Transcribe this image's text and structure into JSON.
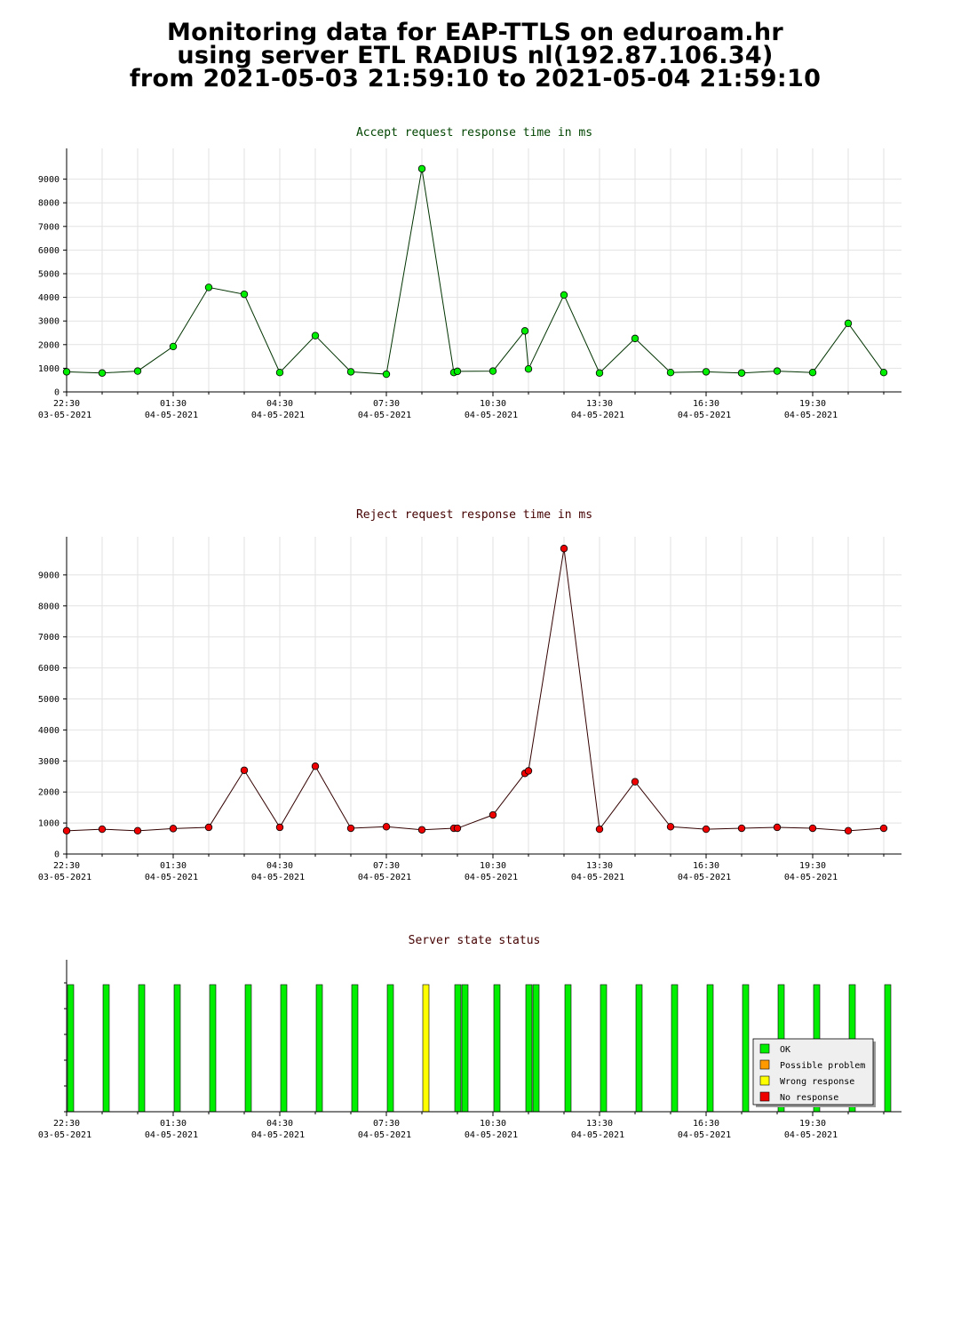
{
  "page": {
    "title_lines": [
      "Monitoring data for EAP-TTLS on eduroam.hr",
      "using server ETL RADIUS nl(192.87.106.34)",
      "from 2021-05-03 21:59:10 to 2021-05-04 21:59:10"
    ]
  },
  "x_axis": {
    "ticks": [
      {
        "hour": 0.5,
        "time": "22:30",
        "date": "03-05-2021"
      },
      {
        "hour": 3.5,
        "time": "01:30",
        "date": "04-05-2021"
      },
      {
        "hour": 6.5,
        "time": "04:30",
        "date": "04-05-2021"
      },
      {
        "hour": 9.5,
        "time": "07:30",
        "date": "04-05-2021"
      },
      {
        "hour": 12.5,
        "time": "10:30",
        "date": "04-05-2021"
      },
      {
        "hour": 15.5,
        "time": "13:30",
        "date": "04-05-2021"
      },
      {
        "hour": 18.5,
        "time": "16:30",
        "date": "04-05-2021"
      },
      {
        "hour": 21.5,
        "time": "19:30",
        "date": "04-05-2021"
      }
    ],
    "range_hours_since_22_00": [
      0.5,
      24
    ]
  },
  "chart_data": [
    {
      "type": "line",
      "title": "Accept request response time in ms",
      "title_color": "#004400",
      "line_color": "#003300",
      "marker_color": "#00ee00",
      "ylim": [
        0,
        10000
      ],
      "yticks": [
        0,
        1000,
        2000,
        3000,
        4000,
        5000,
        6000,
        7000,
        8000,
        9000
      ],
      "grid": true,
      "x_hours": [
        0.5,
        1.5,
        2.5,
        3.5,
        4.5,
        5.5,
        6.5,
        7.5,
        8.5,
        9.5,
        10.5,
        11.4,
        11.5,
        12.5,
        13.4,
        13.5,
        14.5,
        15.5,
        16.5,
        17.5,
        18.5,
        19.5,
        20.5,
        21.5,
        22.5,
        23.5
      ],
      "values": [
        850,
        800,
        880,
        1920,
        4420,
        4130,
        820,
        2380,
        850,
        750,
        9440,
        820,
        870,
        880,
        2580,
        970,
        4100,
        800,
        2260,
        820,
        850,
        800,
        880,
        820,
        2900,
        820
      ]
    },
    {
      "type": "line",
      "title": "Reject request response time in ms",
      "title_color": "#440000",
      "line_color": "#330000",
      "marker_color": "#ee0000",
      "ylim": [
        0,
        10000
      ],
      "yticks": [
        0,
        1000,
        2000,
        3000,
        4000,
        5000,
        6000,
        7000,
        8000,
        9000
      ],
      "grid": true,
      "x_hours": [
        0.5,
        1.5,
        2.5,
        3.5,
        4.5,
        5.5,
        6.5,
        7.5,
        8.5,
        9.5,
        10.5,
        11.4,
        11.5,
        12.5,
        13.4,
        13.5,
        14.5,
        15.5,
        16.5,
        17.5,
        18.5,
        19.5,
        20.5,
        21.5,
        22.5,
        23.5
      ],
      "values": [
        750,
        800,
        750,
        820,
        860,
        2700,
        860,
        2830,
        830,
        880,
        780,
        830,
        830,
        1260,
        2600,
        2680,
        9850,
        800,
        2330,
        880,
        800,
        830,
        860,
        830,
        750,
        830
      ]
    },
    {
      "type": "bar",
      "title": "Server state status",
      "title_color": "#440000",
      "x_hours": [
        0.5,
        1.5,
        2.5,
        3.5,
        4.5,
        5.5,
        6.5,
        7.5,
        8.5,
        9.5,
        10.5,
        11.4,
        11.6,
        12.5,
        13.4,
        13.6,
        14.5,
        15.5,
        16.5,
        17.5,
        18.5,
        19.5,
        20.5,
        21.5,
        22.5,
        23.5
      ],
      "status": [
        "OK",
        "OK",
        "OK",
        "OK",
        "OK",
        "OK",
        "OK",
        "OK",
        "OK",
        "OK",
        "Wrong response",
        "OK",
        "OK",
        "OK",
        "OK",
        "OK",
        "OK",
        "OK",
        "OK",
        "OK",
        "OK",
        "OK",
        "OK",
        "OK",
        "OK",
        "OK"
      ],
      "legend": {
        "placement": "bottom-right",
        "entries": [
          {
            "label": "OK",
            "color": "#00ee00"
          },
          {
            "label": "Possible problem",
            "color": "#ff9900"
          },
          {
            "label": "Wrong response",
            "color": "#ffff00"
          },
          {
            "label": "No response",
            "color": "#ee0000"
          }
        ]
      }
    }
  ]
}
